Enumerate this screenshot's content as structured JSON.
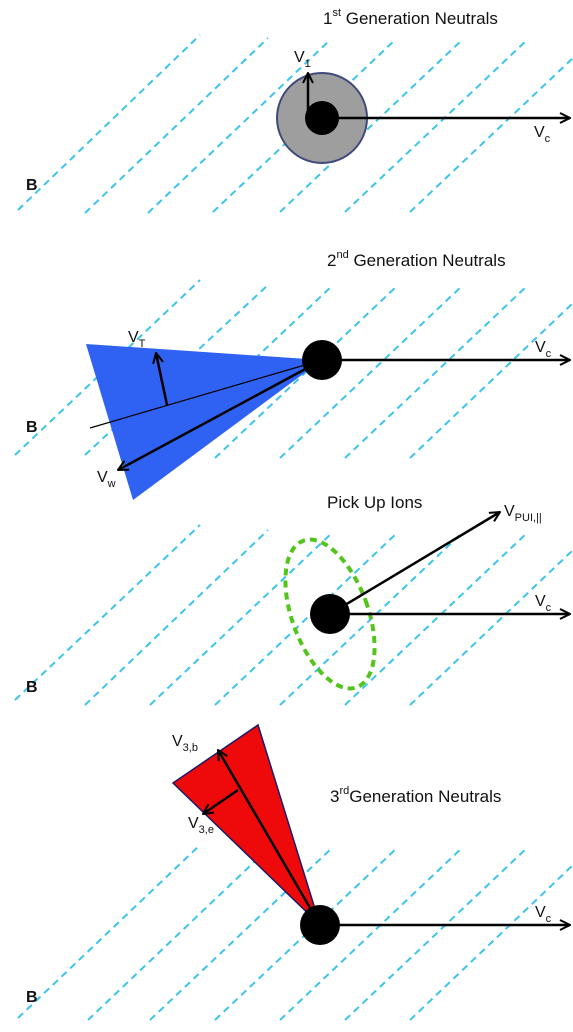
{
  "colors": {
    "field_line": "#3cc3ee",
    "core": "#000000",
    "halo_fill": "#9e9e9e",
    "halo_stroke": "#3f4a7c",
    "cone_blue": "#2f62f2",
    "cone_red": "#ee0a0a",
    "cone_red_stroke": "#1a1a66",
    "pui_ring": "#52c41a",
    "arrow": "#000000"
  },
  "panels": [
    {
      "title_pre": "1",
      "title_sup": "st",
      "title_post": " Generation Neutrals",
      "b_label": "B",
      "vc_main": "V",
      "vc_sub": "c",
      "v1_main": "V",
      "v1_sub": "1"
    },
    {
      "title_pre": "2",
      "title_sup": "nd",
      "title_post": " Generation Neutrals",
      "b_label": "B",
      "vc_main": "V",
      "vc_sub": "c",
      "vt_main": "V",
      "vt_sub": "T",
      "vw_main": "V",
      "vw_sub": "w"
    },
    {
      "title": "Pick Up Ions",
      "b_label": "B",
      "vc_main": "V",
      "vc_sub": "c",
      "vpui_main": "V",
      "vpui_sub": "PUI,||"
    },
    {
      "title_pre": "3",
      "title_sup": "rd",
      "title_post": "Generation Neutrals",
      "b_label": "B",
      "vc_main": "V",
      "vc_sub": "c",
      "v3b_main": "V",
      "v3b_sub": "3,b",
      "v3e_main": "V",
      "v3e_sub": "3,e"
    }
  ]
}
